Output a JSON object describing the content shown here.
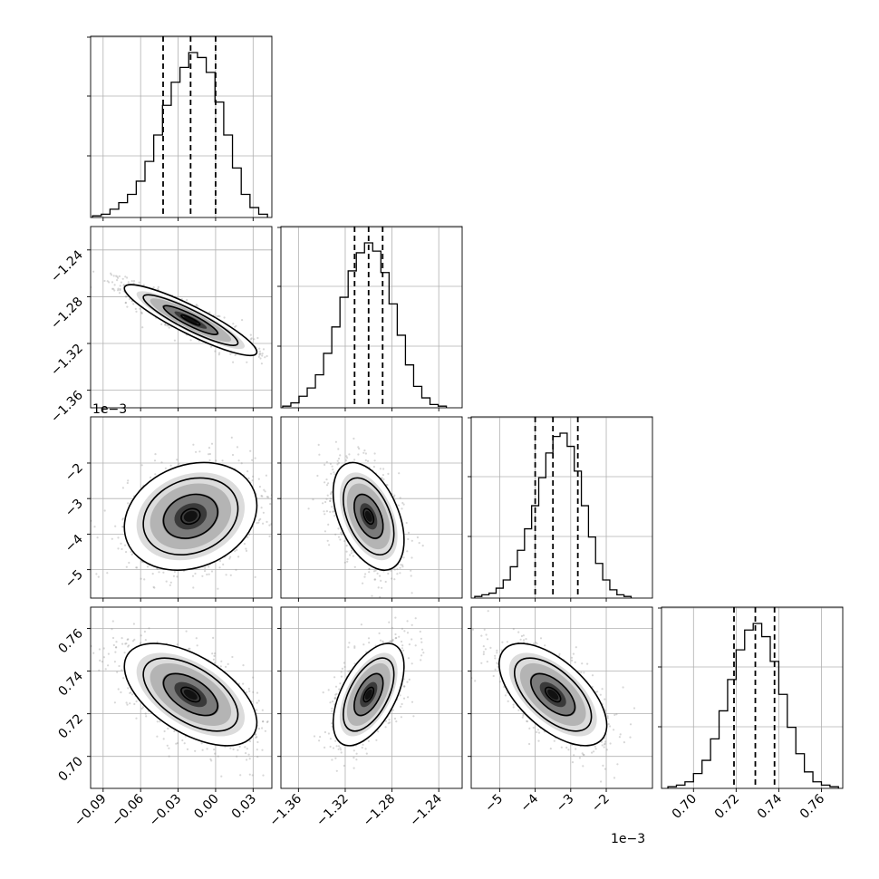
{
  "chart_data": {
    "type": "corner",
    "parameters": [
      {
        "range": [
          -0.1,
          0.045
        ],
        "ticks": [
          -0.09,
          -0.06,
          -0.03,
          0.0,
          0.03
        ],
        "tick_labels": [
          "−0.09",
          "−0.06",
          "−0.03",
          "0.00",
          "0.03"
        ],
        "offset_label": "",
        "median": -0.02,
        "q16": -0.042,
        "q84": 0.0,
        "hist_bins": [
          -0.095,
          -0.088,
          -0.081,
          -0.074,
          -0.067,
          -0.06,
          -0.053,
          -0.046,
          -0.039,
          -0.032,
          -0.025,
          -0.018,
          -0.011,
          -0.004,
          0.003,
          0.01,
          0.017,
          0.024,
          0.031,
          0.038
        ],
        "hist_counts": [
          1,
          2,
          5,
          9,
          14,
          22,
          34,
          50,
          68,
          82,
          91,
          100,
          97,
          88,
          70,
          50,
          30,
          14,
          6,
          2
        ]
      },
      {
        "range": [
          -1.375,
          -1.22
        ],
        "ticks": [
          -1.36,
          -1.32,
          -1.28,
          -1.24
        ],
        "tick_labels": [
          "−1.36",
          "−1.32",
          "−1.28",
          "−1.24"
        ],
        "offset_label": "",
        "median": -1.3,
        "q16": -1.312,
        "q84": -1.288,
        "hist_bins": [
          -1.37,
          -1.363,
          -1.356,
          -1.349,
          -1.342,
          -1.335,
          -1.328,
          -1.321,
          -1.314,
          -1.307,
          -1.3,
          -1.293,
          -1.286,
          -1.279,
          -1.272,
          -1.265,
          -1.258,
          -1.251,
          -1.244,
          -1.237
        ],
        "hist_counts": [
          1,
          3,
          7,
          12,
          20,
          33,
          49,
          67,
          83,
          94,
          100,
          95,
          82,
          63,
          44,
          26,
          13,
          6,
          2,
          1
        ]
      },
      {
        "range": [
          -5.8,
          -0.7
        ],
        "ticks": [
          -5,
          -4,
          -3,
          -2
        ],
        "tick_labels": [
          "−5",
          "−4",
          "−3",
          "−2"
        ],
        "offset_label": "1e−3",
        "median": -3.5,
        "q16": -4.0,
        "q84": -2.8,
        "hist_bins": [
          -5.6,
          -5.4,
          -5.2,
          -5.0,
          -4.8,
          -4.6,
          -4.4,
          -4.2,
          -4.0,
          -3.8,
          -3.6,
          -3.4,
          -3.2,
          -3.0,
          -2.8,
          -2.6,
          -2.4,
          -2.2,
          -2.0,
          -1.8,
          -1.6,
          -1.4
        ],
        "hist_counts": [
          1,
          2,
          3,
          6,
          11,
          19,
          29,
          42,
          56,
          73,
          88,
          98,
          100,
          92,
          77,
          56,
          37,
          21,
          11,
          5,
          2,
          1
        ]
      },
      {
        "range": [
          0.685,
          0.77
        ],
        "ticks": [
          0.7,
          0.72,
          0.74,
          0.76
        ],
        "tick_labels": [
          "0.70",
          "0.72",
          "0.74",
          "0.76"
        ],
        "offset_label": "",
        "median": 0.729,
        "q16": 0.719,
        "q84": 0.738,
        "hist_bins": [
          0.69,
          0.694,
          0.698,
          0.702,
          0.706,
          0.71,
          0.714,
          0.718,
          0.722,
          0.726,
          0.73,
          0.734,
          0.738,
          0.742,
          0.746,
          0.75,
          0.754,
          0.758,
          0.762,
          0.766
        ],
        "hist_counts": [
          1,
          2,
          4,
          9,
          17,
          30,
          47,
          66,
          84,
          96,
          100,
          92,
          77,
          57,
          37,
          21,
          10,
          4,
          2,
          1
        ]
      }
    ],
    "correlations": [
      [
        1.0,
        -0.9,
        0.2,
        -0.55
      ],
      [
        -0.9,
        1.0,
        -0.45,
        0.55
      ],
      [
        0.2,
        -0.45,
        1.0,
        -0.6
      ],
      [
        -0.55,
        0.55,
        -0.6,
        1.0
      ]
    ],
    "grid": true
  }
}
